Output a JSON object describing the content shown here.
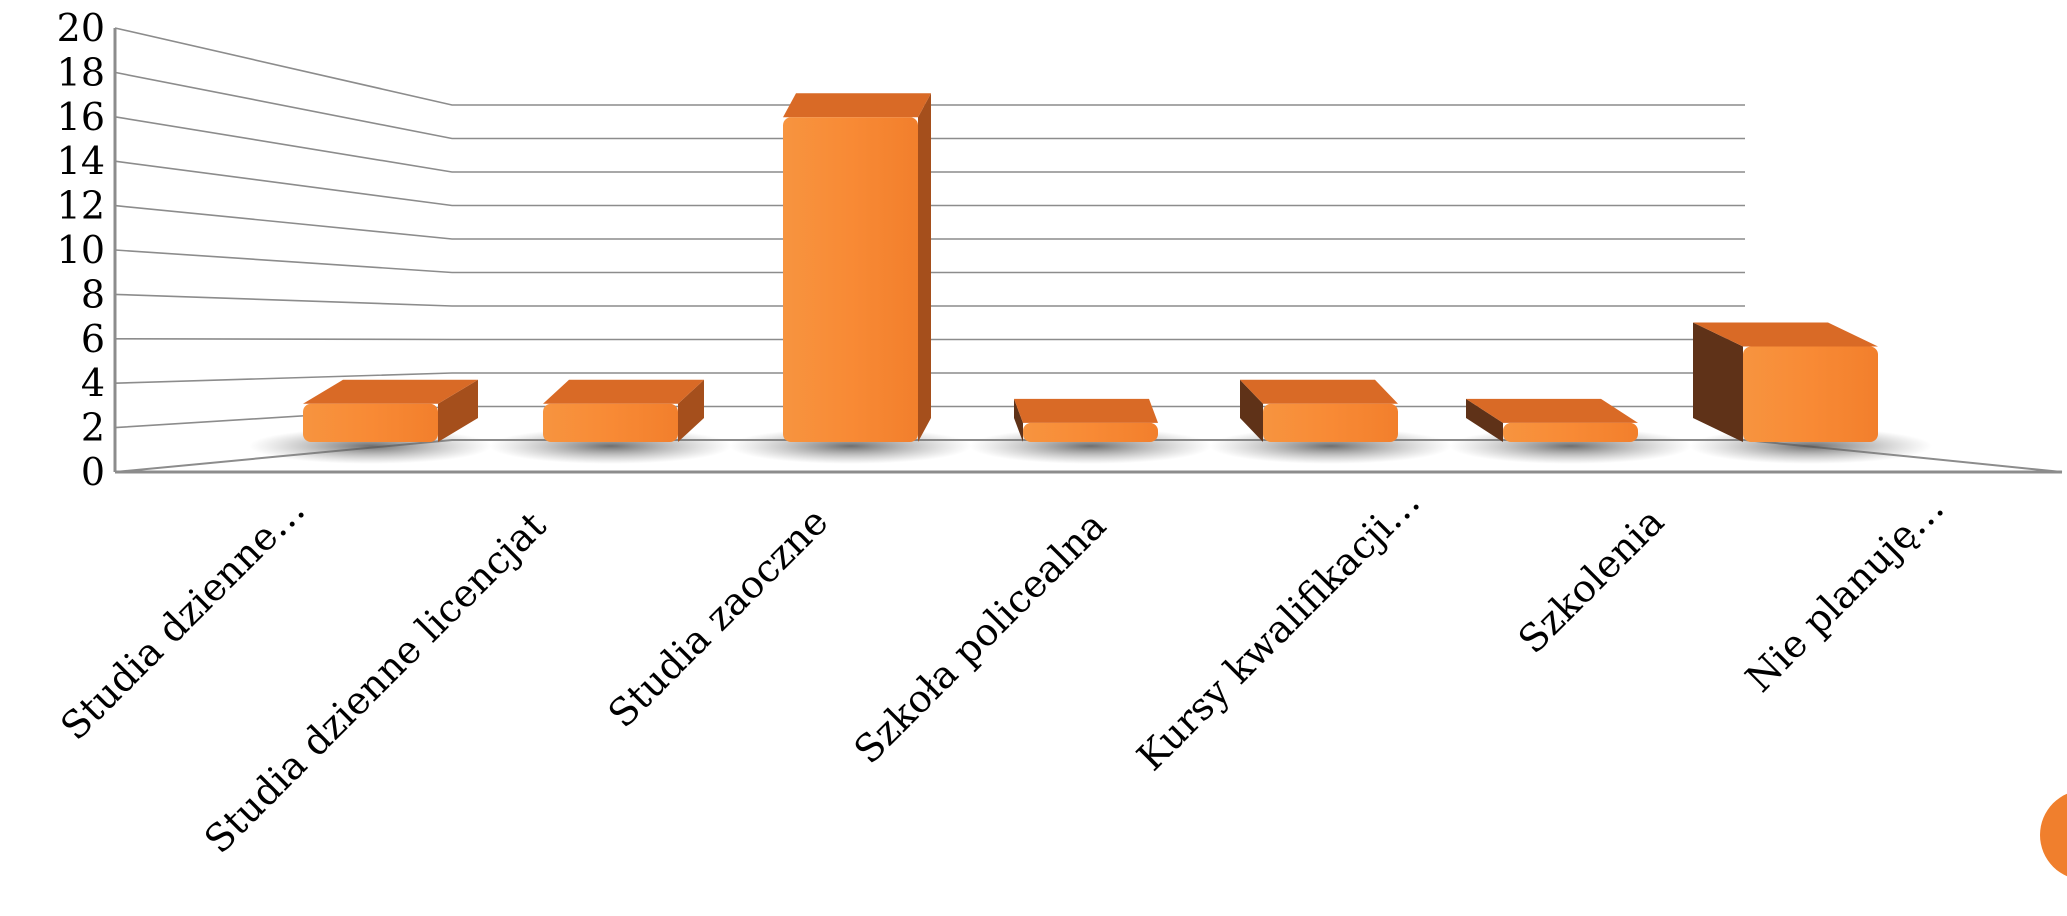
{
  "chart_data": {
    "type": "bar",
    "title": "",
    "xlabel": "",
    "ylabel": "",
    "ylim": [
      0,
      20
    ],
    "yticks": [
      0,
      2,
      4,
      6,
      8,
      10,
      12,
      14,
      16,
      18,
      20
    ],
    "grid": true,
    "legend": "none",
    "categories": [
      "Studia dzienne…",
      "Studia dzienne licencjat",
      "Studia zaoczne",
      "Szkoła policealna",
      "Kursy kwalifikacji…",
      "Szkolenia",
      "Nie planuję…"
    ],
    "values": [
      2,
      2,
      17,
      1,
      2,
      1,
      5
    ],
    "colors": {
      "bar_front": "#f58a36",
      "bar_top": "#d96a26",
      "bar_side": "#a54f1c",
      "bar_side_dark": "#5f3218"
    }
  },
  "decorations": {
    "page_circle_color": "#f07f2d"
  }
}
